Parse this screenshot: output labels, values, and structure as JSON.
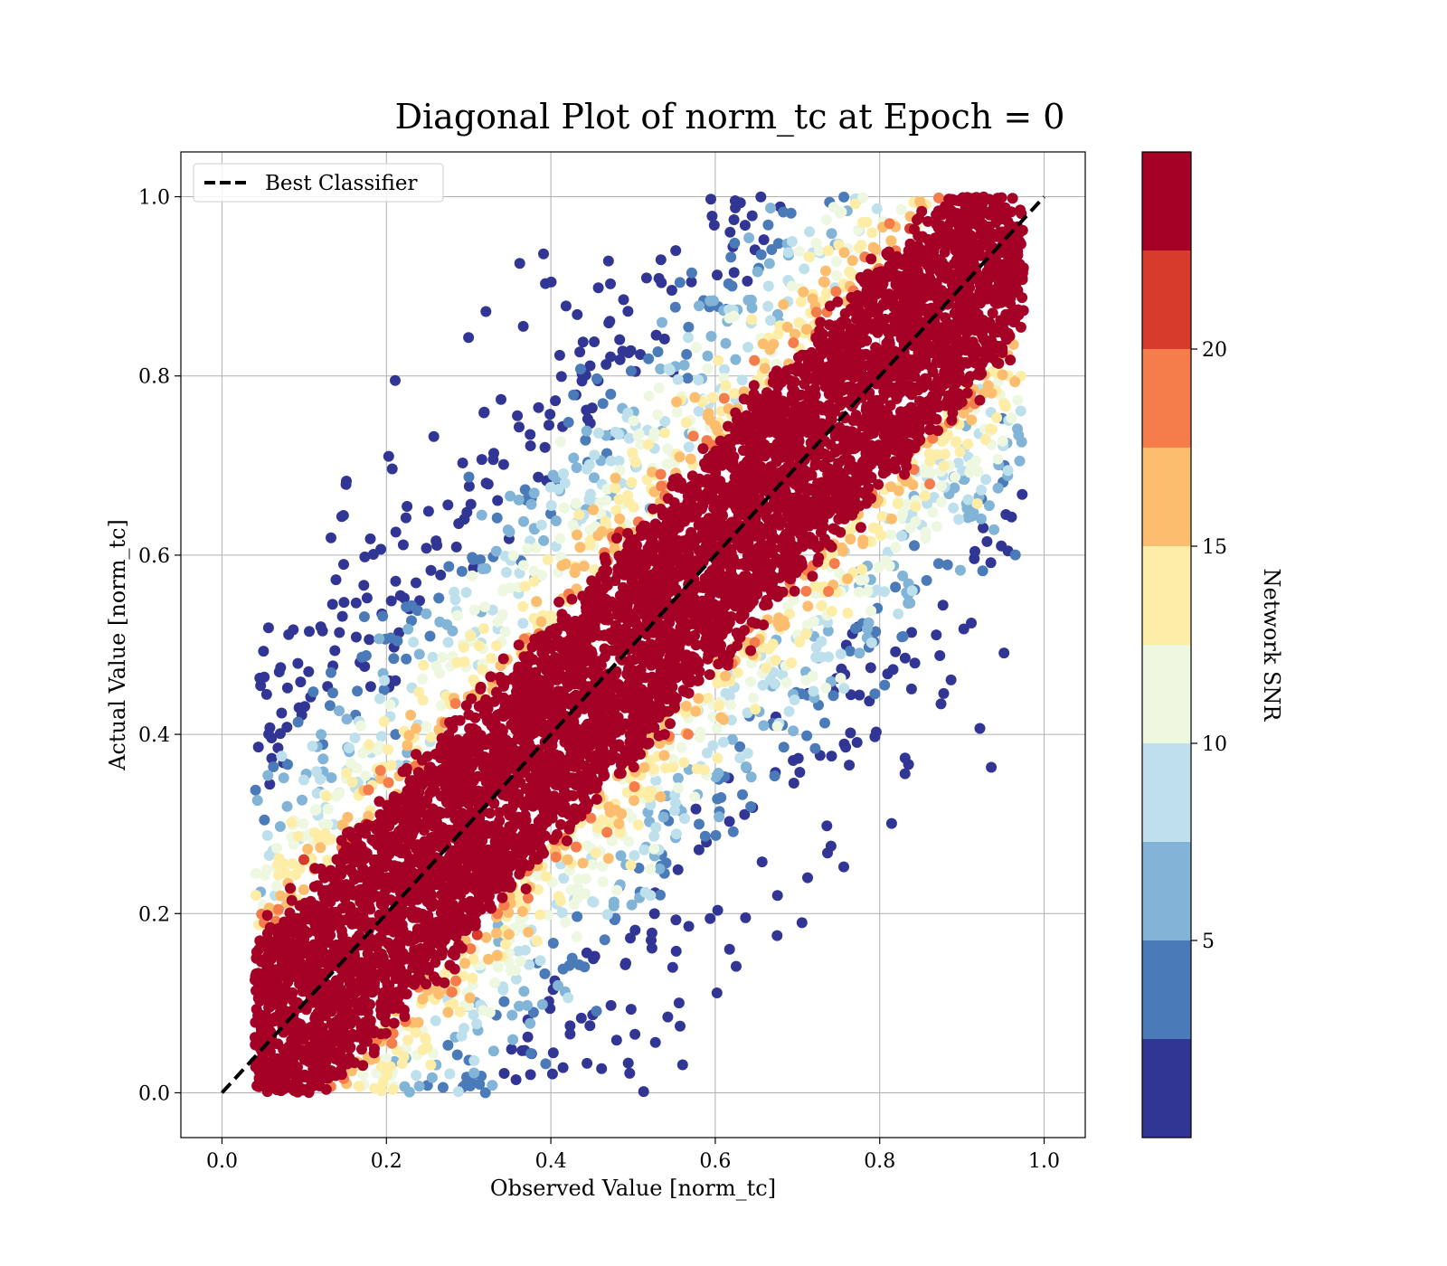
{
  "chart_data": {
    "type": "scatter",
    "title": "Diagonal Plot of norm_tc at Epoch = 0",
    "xlabel": "Observed Value [norm_tc]",
    "ylabel": "Actual Value [norm_tc]",
    "xlim": [
      -0.05,
      1.05
    ],
    "ylim": [
      -0.05,
      1.05
    ],
    "xticks": [
      "0.0",
      "0.2",
      "0.4",
      "0.6",
      "0.8",
      "1.0"
    ],
    "yticks": [
      "0.0",
      "0.2",
      "0.4",
      "0.6",
      "0.8",
      "1.0"
    ],
    "grid": true,
    "legend": {
      "placement": "upper-left",
      "entries": [
        "Best Classifier"
      ]
    },
    "reference_line": {
      "name": "Best Classifier",
      "style": "dashed",
      "color": "#000000",
      "x": [
        0.0,
        1.0
      ],
      "y": [
        0.0,
        1.0
      ]
    },
    "colorbar": {
      "label": "Network SNR",
      "ticks": [
        "5",
        "10",
        "15",
        "20"
      ],
      "tick_values": [
        5,
        10,
        15,
        20
      ],
      "range": [
        0,
        25
      ],
      "bands": [
        {
          "from": 0.0,
          "to": 2.5,
          "color": "#313695"
        },
        {
          "from": 2.5,
          "to": 5.0,
          "color": "#4a7ab8"
        },
        {
          "from": 5.0,
          "to": 7.5,
          "color": "#81b4d6"
        },
        {
          "from": 7.5,
          "to": 10.0,
          "color": "#bde0ec"
        },
        {
          "from": 10.0,
          "to": 12.5,
          "color": "#eef7e0"
        },
        {
          "from": 12.5,
          "to": 15.0,
          "color": "#fdeda6"
        },
        {
          "from": 15.0,
          "to": 17.5,
          "color": "#fcbe6e"
        },
        {
          "from": 17.5,
          "to": 20.0,
          "color": "#f47d4b"
        },
        {
          "from": 20.0,
          "to": 22.5,
          "color": "#d73b2b"
        },
        {
          "from": 22.5,
          "to": 25.0,
          "color": "#a50026"
        }
      ]
    },
    "scatter_distribution": {
      "description_free_params": true,
      "x_range": [
        0.05,
        0.97
      ],
      "y_range": [
        0.0,
        1.0
      ],
      "core_band_halfwidth": 0.2,
      "high_snr_color": "#a50026"
    }
  }
}
